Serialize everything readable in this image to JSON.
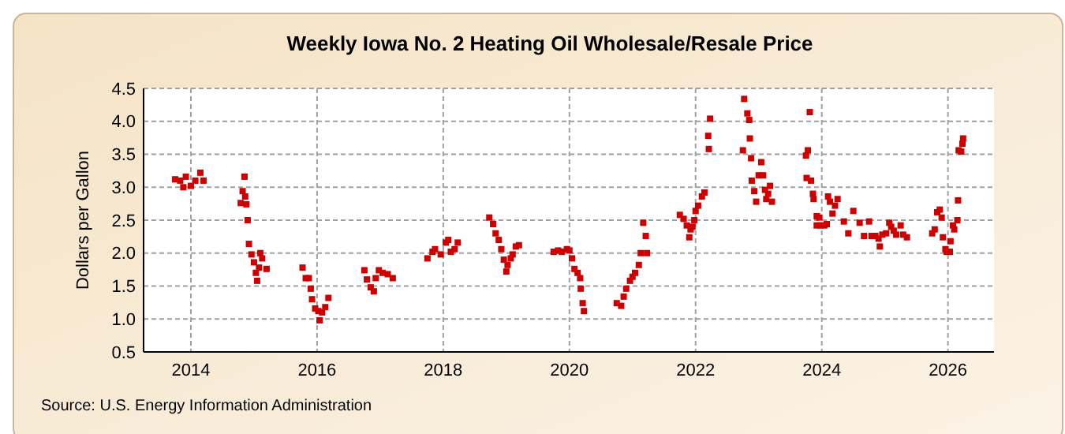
{
  "chart_data": {
    "type": "scatter",
    "title": "Weekly Iowa No. 2 Heating Oil Wholesale/Resale Price",
    "ylabel": "Dollars per Gallon",
    "annotations": [
      "Source: U.S. Energy Information Administration"
    ],
    "xlim": [
      2013.25,
      2026.73
    ],
    "xticks": [
      2014,
      2016,
      2018,
      2020,
      2022,
      2024,
      2026
    ],
    "ylim": [
      0.5,
      4.5
    ],
    "yticks": [
      {
        "value": 0.5,
        "label": "0.5"
      },
      {
        "value": 1,
        "label": "1.0"
      },
      {
        "value": 1.5,
        "label": "1.5"
      },
      {
        "value": 2,
        "label": "2.0"
      },
      {
        "value": 2.5,
        "label": "2.5"
      },
      {
        "value": 3,
        "label": "3.0"
      },
      {
        "value": 3.5,
        "label": "3.5"
      },
      {
        "value": 4,
        "label": "4.0"
      },
      {
        "value": 4.5,
        "label": "4.5"
      }
    ],
    "grid": true,
    "marker": "square",
    "series": [
      {
        "color": "#cc0000",
        "x": [
          2013.75,
          2013.83,
          2013.88,
          2013.92,
          2014.0,
          2014.07,
          2014.15,
          2014.2,
          2014.79,
          2014.82,
          2014.85,
          2014.86,
          2014.88,
          2014.9,
          2014.92,
          2014.96,
          2015.0,
          2015.03,
          2015.05,
          2015.08,
          2015.1,
          2015.13,
          2015.2,
          2015.77,
          2015.82,
          2015.87,
          2015.9,
          2015.92,
          2015.97,
          2016.02,
          2016.04,
          2016.08,
          2016.13,
          2016.18,
          2016.75,
          2016.79,
          2016.85,
          2016.9,
          2016.93,
          2016.98,
          2017.04,
          2017.12,
          2017.2,
          2017.75,
          2017.83,
          2017.87,
          2017.96,
          2018.04,
          2018.08,
          2018.12,
          2018.18,
          2018.23,
          2018.73,
          2018.79,
          2018.83,
          2018.88,
          2018.92,
          2018.96,
          2019.0,
          2019.02,
          2019.07,
          2019.1,
          2019.15,
          2019.2,
          2019.75,
          2019.82,
          2019.88,
          2019.96,
          2020.0,
          2020.04,
          2020.08,
          2020.13,
          2020.17,
          2020.18,
          2020.21,
          2020.23,
          2020.75,
          2020.82,
          2020.86,
          2020.9,
          2020.96,
          2021.0,
          2021.04,
          2021.1,
          2021.13,
          2021.17,
          2021.21,
          2021.23,
          2021.75,
          2021.81,
          2021.86,
          2021.92,
          2021.9,
          2021.95,
          2021.98,
          2022.0,
          2022.04,
          2022.1,
          2022.14,
          2022.2,
          2022.21,
          2022.23,
          2022.75,
          2022.77,
          2022.82,
          2022.85,
          2022.86,
          2022.88,
          2022.89,
          2022.93,
          2022.96,
          2023.0,
          2023.04,
          2023.07,
          2023.1,
          2023.12,
          2023.15,
          2023.18,
          2023.21,
          2023.75,
          2023.78,
          2023.81,
          2023.76,
          2023.83,
          2023.86,
          2023.87,
          2023.92,
          2023.96,
          2023.92,
          2023.98,
          2024.04,
          2024.08,
          2024.1,
          2024.13,
          2024.17,
          2024.21,
          2024.25,
          2024.35,
          2024.42,
          2024.5,
          2024.6,
          2024.67,
          2024.75,
          2024.79,
          2024.85,
          2024.9,
          2024.92,
          2024.96,
          2025.02,
          2025.07,
          2025.1,
          2025.14,
          2025.18,
          2025.25,
          2025.29,
          2025.35,
          2025.75,
          2025.79,
          2025.83,
          2025.87,
          2025.9,
          2025.92,
          2025.96,
          2025.98,
          2026.03,
          2026.04,
          2026.08,
          2026.1,
          2026.15,
          2026.16,
          2026.17,
          2026.21,
          2026.23,
          2026.24
        ],
        "values": [
          3.12,
          3.1,
          3.0,
          3.16,
          3.02,
          3.1,
          3.22,
          3.1,
          2.76,
          2.94,
          3.16,
          2.86,
          2.74,
          2.5,
          2.14,
          1.98,
          1.86,
          1.7,
          1.58,
          1.78,
          2.0,
          1.92,
          1.76,
          1.78,
          1.62,
          1.62,
          1.46,
          1.3,
          1.16,
          1.12,
          0.98,
          1.1,
          1.18,
          1.32,
          1.74,
          1.6,
          1.48,
          1.42,
          1.62,
          1.74,
          1.7,
          1.68,
          1.62,
          1.92,
          2.02,
          2.06,
          1.98,
          2.16,
          2.2,
          2.02,
          2.06,
          2.16,
          2.54,
          2.44,
          2.3,
          2.2,
          2.06,
          1.9,
          1.72,
          1.82,
          1.92,
          1.98,
          2.1,
          2.12,
          2.02,
          2.04,
          2.02,
          2.06,
          2.04,
          1.92,
          1.76,
          1.7,
          1.62,
          1.46,
          1.24,
          1.12,
          1.24,
          1.2,
          1.34,
          1.46,
          1.58,
          1.64,
          1.7,
          1.82,
          2.0,
          2.46,
          2.26,
          2.0,
          2.58,
          2.52,
          2.42,
          2.36,
          2.24,
          2.4,
          2.5,
          2.64,
          2.72,
          2.86,
          2.92,
          3.78,
          3.58,
          4.04,
          3.56,
          4.34,
          4.12,
          4.02,
          3.74,
          3.44,
          3.1,
          2.94,
          2.78,
          3.18,
          3.38,
          3.18,
          2.96,
          2.82,
          2.9,
          3.02,
          2.78,
          3.48,
          3.56,
          4.14,
          3.14,
          3.1,
          2.9,
          2.82,
          2.56,
          2.54,
          2.42,
          2.42,
          2.42,
          2.44,
          2.86,
          2.78,
          2.6,
          2.72,
          2.82,
          2.48,
          2.3,
          2.64,
          2.46,
          2.26,
          2.48,
          2.26,
          2.26,
          2.22,
          2.1,
          2.28,
          2.3,
          2.46,
          2.4,
          2.34,
          2.28,
          2.42,
          2.28,
          2.24,
          2.3,
          2.36,
          2.62,
          2.66,
          2.54,
          2.24,
          2.06,
          2.02,
          2.02,
          2.18,
          2.42,
          2.36,
          2.5,
          2.8,
          3.56,
          3.54,
          3.66,
          3.74
        ]
      }
    ]
  }
}
